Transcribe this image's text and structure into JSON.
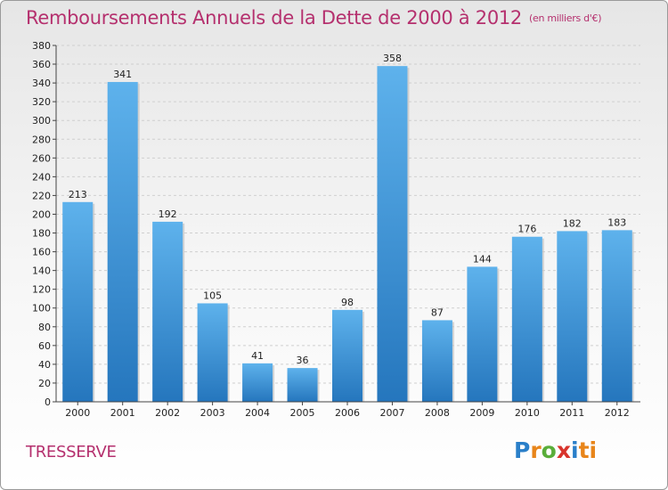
{
  "title": "Remboursements Annuels de la Dette de 2000 à 2012",
  "unit_note": "(en milliers d'€)",
  "commune": "TRESSERVE",
  "logo": {
    "letters": [
      "P",
      "r",
      "o",
      "x",
      "i",
      "ti"
    ]
  },
  "colors": {
    "title": "#b5306e",
    "bar_top": "#5eb2ec",
    "bar_bottom": "#2576bd"
  },
  "chart_data": {
    "type": "bar",
    "title": "Remboursements Annuels de la Dette de 2000 à 2012",
    "xlabel": "",
    "ylabel": "",
    "categories": [
      "2000",
      "2001",
      "2002",
      "2003",
      "2004",
      "2005",
      "2006",
      "2007",
      "2008",
      "2009",
      "2010",
      "2011",
      "2012"
    ],
    "values": [
      213,
      341,
      192,
      105,
      41,
      36,
      98,
      358,
      87,
      144,
      176,
      182,
      183
    ],
    "ylim": [
      0,
      380
    ],
    "ytick_step": 20,
    "grid": true,
    "legend": "none"
  }
}
